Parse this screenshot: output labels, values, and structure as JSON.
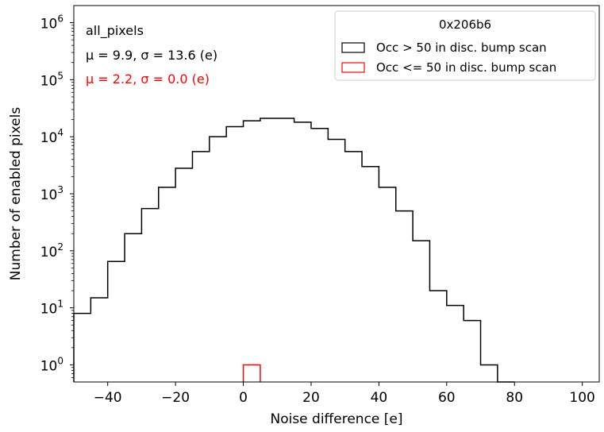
{
  "chart_data": {
    "type": "histogram",
    "xlabel": "Noise difference [e]",
    "ylabel": "Number of enabled pixels",
    "xlim": [
      -50,
      105
    ],
    "ylim_log10": [
      -0.3,
      6.3
    ],
    "yscale": "log",
    "x_ticks": [
      -40,
      -20,
      0,
      20,
      40,
      60,
      80,
      100
    ],
    "x_tick_labels": [
      "−40",
      "−20",
      "0",
      "20",
      "40",
      "60",
      "80",
      "100"
    ],
    "y_ticks": [
      0,
      1,
      2,
      3,
      4,
      5,
      6
    ],
    "y_tick_labels": [
      {
        "base": "10",
        "exp": "0"
      },
      {
        "base": "10",
        "exp": "1"
      },
      {
        "base": "10",
        "exp": "2"
      },
      {
        "base": "10",
        "exp": "3"
      },
      {
        "base": "10",
        "exp": "4"
      },
      {
        "base": "10",
        "exp": "5"
      },
      {
        "base": "10",
        "exp": "6"
      }
    ],
    "annotations": [
      {
        "text": "all_pixels",
        "color": "#000000"
      },
      {
        "text": "μ = 9.9, σ = 13.6 (e)",
        "color": "#000000"
      },
      {
        "text": "μ = 2.2, σ = 0.0 (e)",
        "color": "#ff0000"
      }
    ],
    "legend": {
      "title": "0x206b6",
      "placement": "top-right",
      "entries": [
        "Occ > 50 in disc. bump scan",
        "Occ <= 50 in disc. bump scan"
      ]
    },
    "series": [
      {
        "name": "Occ > 50 in disc. bump scan",
        "color": "#000000",
        "bin_edges": [
          -50,
          -45,
          -40,
          -35,
          -30,
          -25,
          -20,
          -15,
          -10,
          -5,
          0,
          5,
          10,
          15,
          20,
          25,
          30,
          35,
          40,
          45,
          50,
          55,
          60,
          65,
          70,
          75,
          80
        ],
        "counts": [
          8,
          15,
          65,
          200,
          550,
          1300,
          2800,
          5500,
          10000,
          15000,
          19000,
          21000,
          21000,
          18000,
          14000,
          9000,
          5500,
          3000,
          1300,
          500,
          150,
          20,
          11,
          6,
          1,
          0
        ]
      },
      {
        "name": "Occ <= 50 in disc. bump scan",
        "color": "#ff0000",
        "bin_edges": [
          0,
          5
        ],
        "counts": [
          1
        ]
      }
    ]
  }
}
